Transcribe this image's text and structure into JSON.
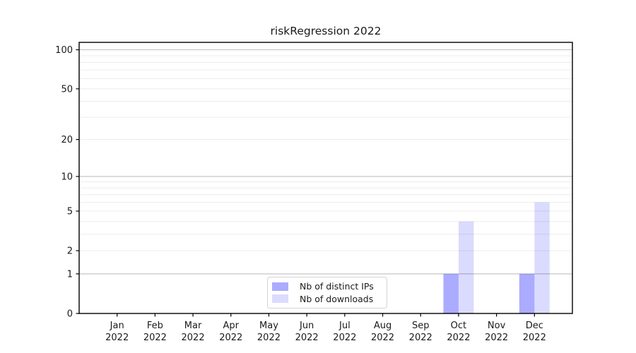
{
  "chart_data": {
    "type": "bar",
    "title": "riskRegression 2022",
    "categories": [
      "Jan 2022",
      "Feb 2022",
      "Mar 2022",
      "Apr 2022",
      "May 2022",
      "Jun 2022",
      "Jul 2022",
      "Aug 2022",
      "Sep 2022",
      "Oct 2022",
      "Nov 2022",
      "Dec 2022"
    ],
    "series": [
      {
        "name": "Nb of distinct IPs",
        "values": [
          0,
          0,
          0,
          0,
          0,
          0,
          0,
          0,
          0,
          1,
          0,
          1
        ],
        "color": "rgba(0,0,255,0.33)",
        "color_on_white": "#ababfb"
      },
      {
        "name": "Nb of downloads",
        "values": [
          0,
          0,
          0,
          0,
          0,
          0,
          0,
          0,
          0,
          4,
          0,
          6
        ],
        "color": "rgba(0,0,255,0.14)",
        "color_on_white": "#dcdbfb"
      }
    ],
    "xlabel": "",
    "ylabel": "",
    "y_scale": "log1p",
    "y_tick_values": [
      0,
      1,
      2,
      5,
      10,
      20,
      50,
      100
    ],
    "y_tick_labels": [
      "0",
      "1",
      "2",
      "5",
      "10",
      "20",
      "50",
      "100"
    ],
    "y_minor_gridlines": [
      2,
      3,
      4,
      5,
      6,
      7,
      8,
      9,
      20,
      30,
      40,
      50,
      60,
      70,
      80,
      90
    ],
    "y_major_gridlines": [
      1,
      10,
      100
    ],
    "ylim": [
      0,
      114
    ],
    "grid": true,
    "legend_position": "bottom-center",
    "background_color": "#ffffff",
    "axis_color": "#000000",
    "text_color": "#1a1a1a",
    "gridline_minor_color": "#ececec",
    "gridline_major_color": "#bfbfbf"
  }
}
